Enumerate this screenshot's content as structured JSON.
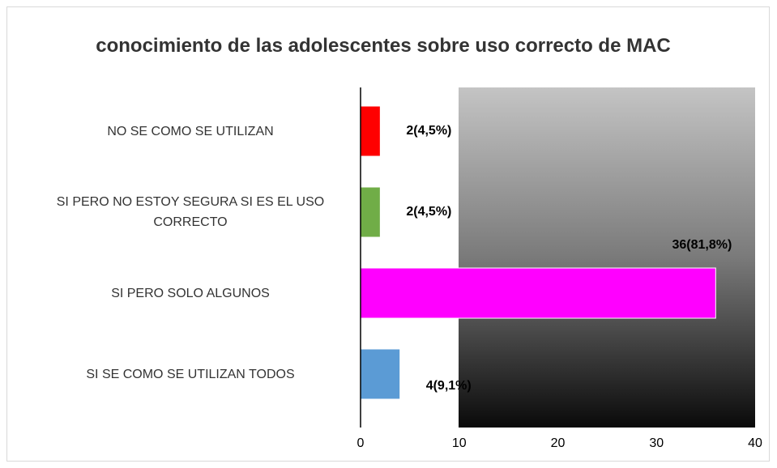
{
  "chart_data": {
    "type": "bar",
    "orientation": "horizontal",
    "title": "conocimiento de las adolescentes sobre uso correcto de MAC",
    "categories": [
      "NO SE COMO SE UTILIZAN",
      "SI PERO NO ESTOY SEGURA SI ES EL USO CORRECTO",
      "SI PERO SOLO ALGUNOS",
      "SI SE COMO SE UTILIZAN TODOS"
    ],
    "values": [
      2,
      2,
      36,
      4
    ],
    "value_labels": [
      "2(4,5%)",
      "2(4,5%)",
      "36(81,8%)",
      "4(9,1%)"
    ],
    "colors": [
      "#ff0000",
      "#70ad47",
      "#ff00ff",
      "#5b9bd5"
    ],
    "xlim": [
      0,
      40
    ],
    "xticks": [
      0,
      10,
      20,
      30,
      40
    ],
    "grid": false
  }
}
